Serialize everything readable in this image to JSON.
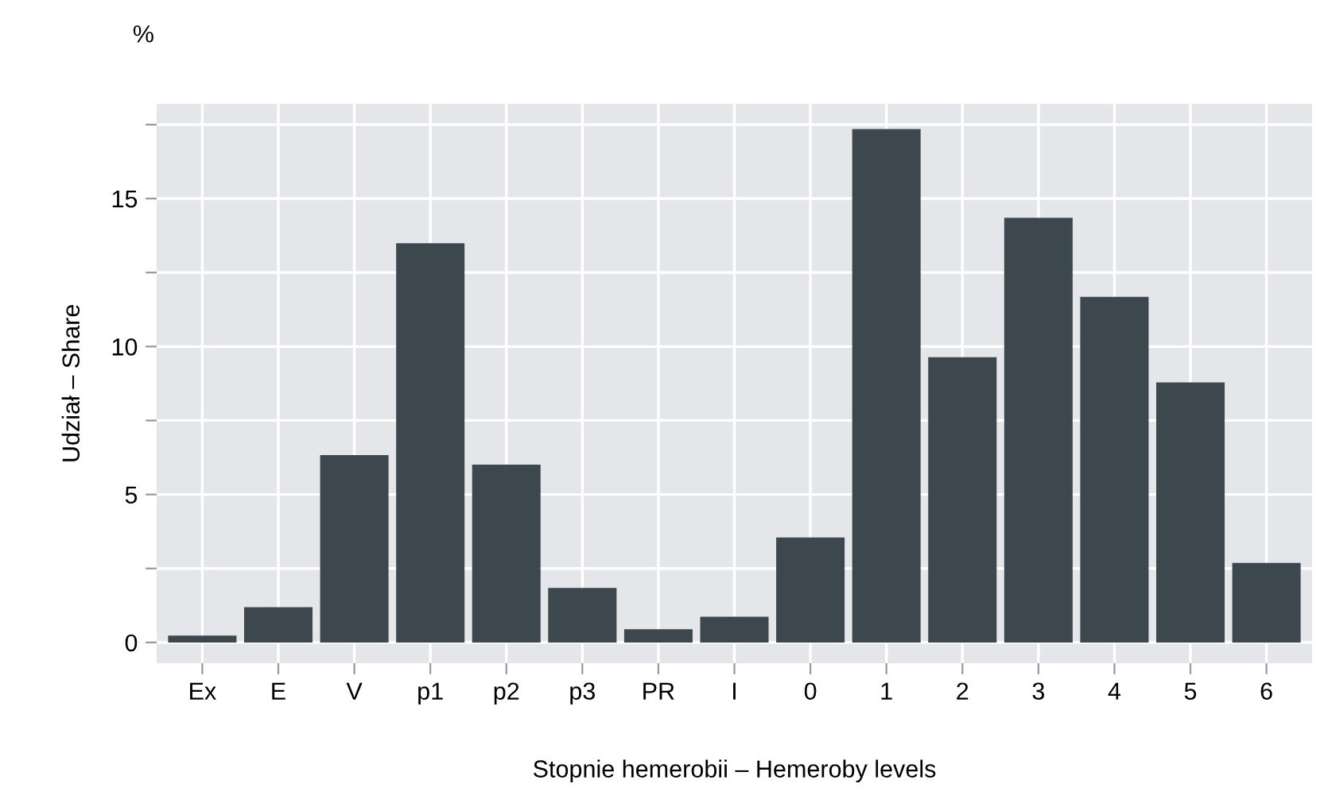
{
  "chart_data": {
    "type": "bar",
    "xlabel": "Stopnie hemerobii – Hemeroby levels",
    "ylabel": "Udział – Share",
    "annotations": [
      "%"
    ],
    "categories": [
      "Ex",
      "E",
      "V",
      "p1",
      "p2",
      "p3",
      "PR",
      "I",
      "0",
      "1",
      "2",
      "3",
      "4",
      "5",
      "6"
    ],
    "values": [
      0.23,
      1.19,
      6.33,
      13.49,
      6.01,
      1.84,
      0.45,
      0.87,
      3.55,
      17.35,
      9.64,
      14.35,
      11.68,
      8.79,
      2.69
    ],
    "color": "#3c474e",
    "ylim": [
      -0.7,
      18.2
    ],
    "yticks": [
      0,
      {
        "value": 2.5,
        "label": null
      },
      5,
      {
        "value": 7.5,
        "label": null
      },
      10,
      {
        "value": 12.5,
        "label": null
      },
      15,
      {
        "value": 17.5,
        "label": null
      }
    ],
    "grid": true
  }
}
